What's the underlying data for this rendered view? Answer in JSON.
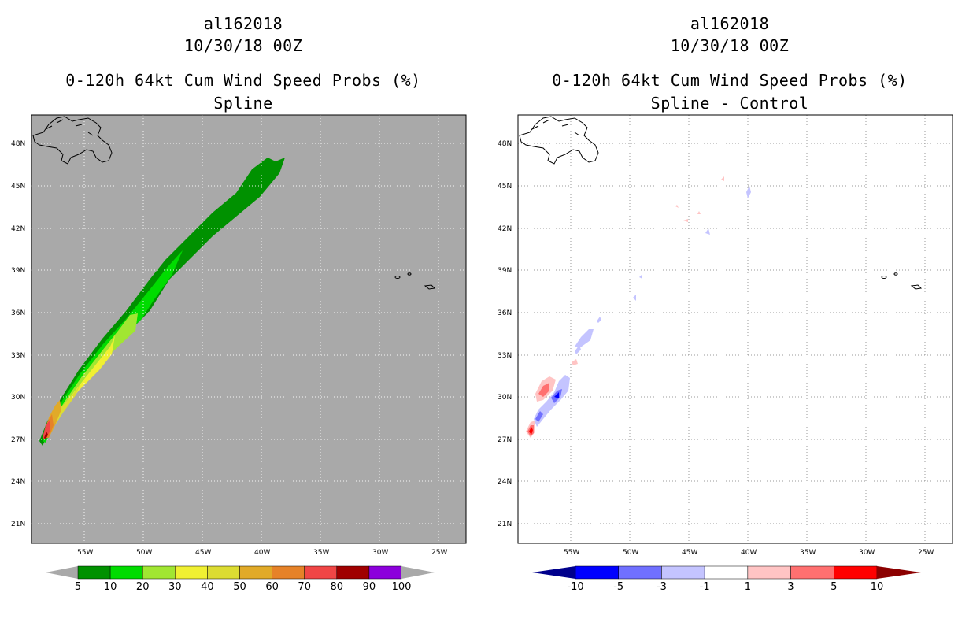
{
  "left": {
    "storm_id": "al162018",
    "datetime": "10/30/18 00Z",
    "product": "0-120h 64kt Cum Wind Speed Probs (%)",
    "subtitle": "Spline",
    "lat_labels": [
      "48N",
      "45N",
      "42N",
      "39N",
      "36N",
      "33N",
      "30N",
      "27N",
      "24N",
      "21N"
    ],
    "lon_labels": [
      "55W",
      "50W",
      "45W",
      "40W",
      "35W",
      "30W",
      "25W"
    ],
    "colorbar": {
      "labels": [
        "5",
        "10",
        "20",
        "30",
        "40",
        "50",
        "60",
        "70",
        "80",
        "90",
        "100"
      ],
      "colors": [
        "#009100",
        "#00dc00",
        "#a1e632",
        "#f0f032",
        "#dcdc32",
        "#e1aa28",
        "#e68228",
        "#f04646",
        "#a00000",
        "#8c00dc"
      ]
    }
  },
  "right": {
    "storm_id": "al162018",
    "datetime": "10/30/18 00Z",
    "product": "0-120h 64kt Cum Wind Speed Probs (%)",
    "subtitle": "Spline - Control",
    "lat_labels": [
      "48N",
      "45N",
      "42N",
      "39N",
      "36N",
      "33N",
      "30N",
      "27N",
      "24N",
      "21N"
    ],
    "lon_labels": [
      "55W",
      "50W",
      "45W",
      "40W",
      "35W",
      "30W",
      "25W"
    ],
    "colorbar": {
      "labels": [
        "-10",
        "-5",
        "-3",
        "-1",
        "1",
        "3",
        "5",
        "10"
      ],
      "colors": [
        "#0000ff",
        "#7070ff",
        "#c4c4ff",
        "#ffffff",
        "#ffc4c4",
        "#ff7070",
        "#ff0000"
      ]
    }
  },
  "styles": {
    "land_gray": "#a9a9a9",
    "left_end_arrow": "#a9a9a9",
    "right_low_arrow": "#00008c",
    "right_high_arrow": "#8c0000"
  }
}
